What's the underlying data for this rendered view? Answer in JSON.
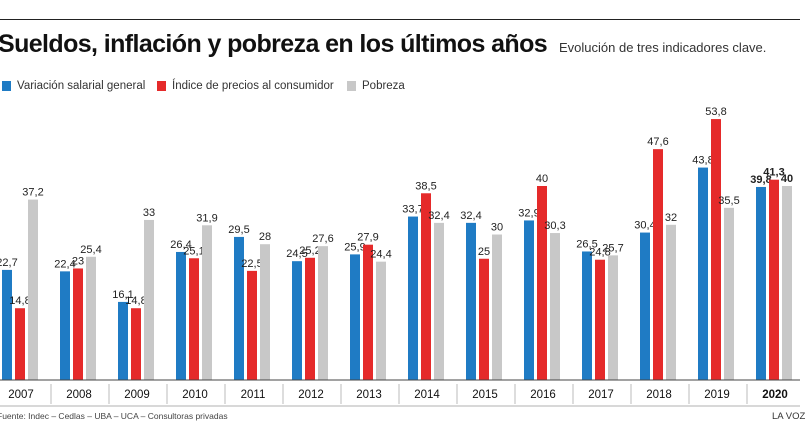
{
  "header": {
    "title": "Sueldos, inflación y pobreza en los últimos años",
    "subtitle": "Evolución de tres indicadores clave."
  },
  "legend": [
    {
      "label": "Variación salarial general",
      "color": "#1f7bc4"
    },
    {
      "label": "Índice de precios al consumidor",
      "color": "#e52a2a"
    },
    {
      "label": "Pobreza",
      "color": "#c8c8c8"
    }
  ],
  "footer": {
    "source": "Fuente: Indec – Cedlas – UBA – UCA – Consultoras privadas",
    "brand": "LA VOZ"
  },
  "chart_data": {
    "type": "bar",
    "categories": [
      "2007",
      "2008",
      "2009",
      "2010",
      "2011",
      "2012",
      "2013",
      "2014",
      "2015",
      "2016",
      "2017",
      "2018",
      "2019",
      "2020"
    ],
    "series": [
      {
        "name": "Variación salarial general",
        "color": "#1f7bc4",
        "values": [
          22.7,
          22.4,
          16.1,
          26.4,
          29.5,
          24.5,
          25.9,
          33.7,
          32.4,
          32.9,
          26.5,
          30.4,
          43.8,
          39.8
        ]
      },
      {
        "name": "Índice de precios al consumidor",
        "color": "#e52a2a",
        "values": [
          14.8,
          23,
          14.8,
          25.1,
          22.5,
          25.2,
          27.9,
          38.5,
          25,
          40,
          24.8,
          47.6,
          53.8,
          41.3
        ]
      },
      {
        "name": "Pobreza",
        "color": "#c8c8c8",
        "values": [
          37.2,
          25.4,
          33,
          31.9,
          28,
          27.6,
          24.4,
          32.4,
          30,
          30.3,
          25.7,
          32,
          35.5,
          40
        ]
      }
    ],
    "data_labels": [
      [
        "22,7",
        "22,4",
        "16,1",
        "26,4",
        "29,5",
        "24,5",
        "25,9",
        "33,7",
        "32,4",
        "32,9",
        "26,5",
        "30,4",
        "43,8",
        "39,8"
      ],
      [
        "14,8",
        "23",
        "14,8",
        "25,1",
        "22,5",
        "25,2",
        "27,9",
        "38,5",
        "25",
        "40",
        "24,8",
        "47,6",
        "53,8",
        "41,3"
      ],
      [
        "37,2",
        "25,4",
        "33",
        "31,9",
        "28",
        "27,6",
        "24,4",
        "32,4",
        "30",
        "30,3",
        "25,7",
        "32",
        "35,5",
        "40"
      ]
    ],
    "highlight_category": "2020",
    "ylim": [
      0,
      60
    ],
    "xlabel": "",
    "ylabel": "",
    "grid": false,
    "legend_position": "top-left"
  }
}
